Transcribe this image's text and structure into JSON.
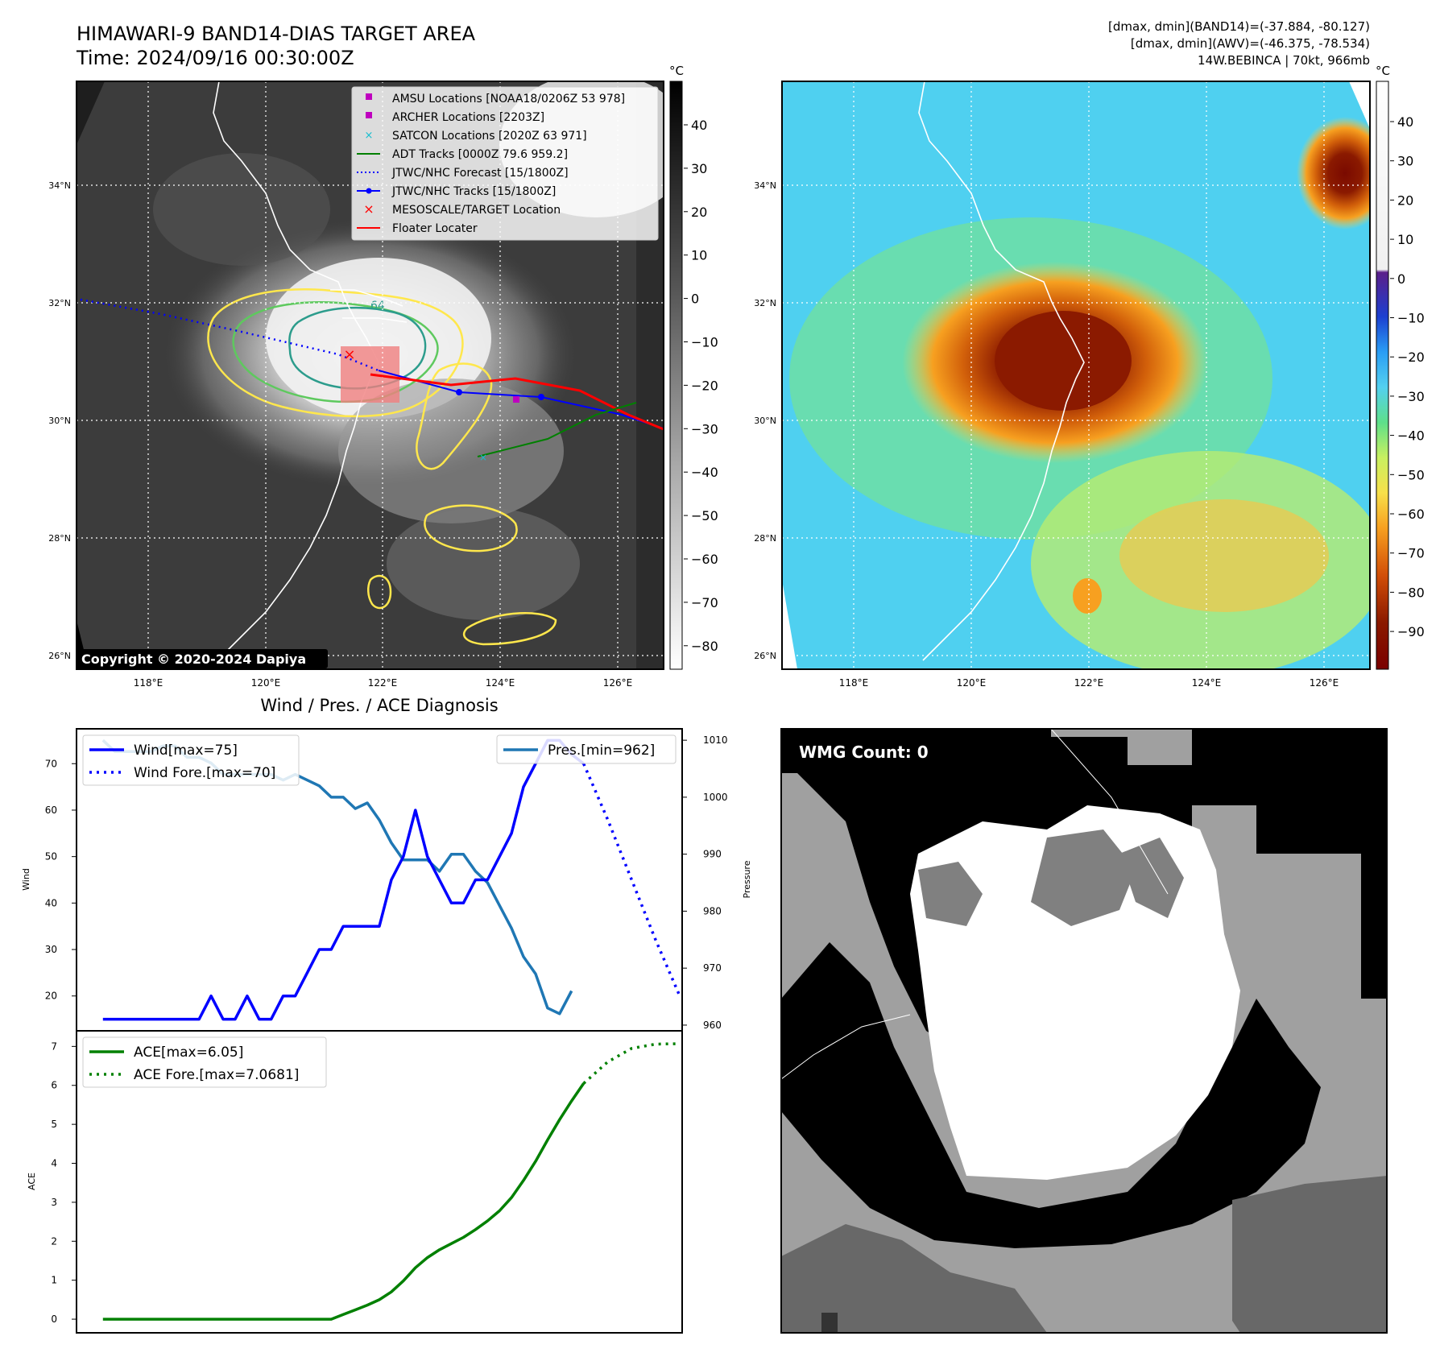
{
  "header": {
    "title": "HIMAWARI-9 BAND14-DIAS TARGET AREA",
    "time": "Time: 2024/09/16 00:30:00Z",
    "stats_band14": "[dmax, dmin](BAND14)=(-37.884, -80.127)",
    "stats_awv": "[dmax, dmin](AWV)=(-46.375, -78.534)",
    "storm": "14W.BEBINCA | 70kt, 966mb"
  },
  "map": {
    "lon_ticks": [
      "118°E",
      "120°E",
      "122°E",
      "124°E",
      "126°E"
    ],
    "lat_ticks": [
      "26°N",
      "28°N",
      "30°N",
      "32°N",
      "34°N"
    ],
    "copyright": "Copyright © 2020-2024 Dapiya",
    "contour_label": "64",
    "colorbar_unit": "°C",
    "gray_colorbar_ticks": [
      "40",
      "30",
      "20",
      "10",
      "0",
      "−10",
      "−20",
      "−30",
      "−40",
      "−50",
      "−60",
      "−70",
      "−80"
    ],
    "color_colorbar_ticks": [
      "40",
      "30",
      "20",
      "10",
      "0",
      "−10",
      "−20",
      "−30",
      "−40",
      "−50",
      "−60",
      "−70",
      "−80",
      "−90"
    ],
    "legend": [
      {
        "label": "AMSU Locations [NOAA18/0206Z 53 978]",
        "color": "#bf00bf"
      },
      {
        "label": "ARCHER Locations [2203Z]",
        "color": "#bf00bf"
      },
      {
        "label": "SATCON Locations [2020Z 63 971]",
        "color": "#17becf"
      },
      {
        "label": "ADT Tracks [0000Z 79.6 959.2]",
        "color": "#008000"
      },
      {
        "label": "JTWC/NHC Forecast [15/1800Z]",
        "color": "#0000ff"
      },
      {
        "label": "JTWC/NHC Tracks [15/1800Z]",
        "color": "#0000ff"
      },
      {
        "label": "MESOSCALE/TARGET Location",
        "color": "#ff0000"
      },
      {
        "label": "Floater Locater",
        "color": "#ff0000"
      }
    ]
  },
  "wmg": {
    "label": "WMG Count: 0"
  },
  "chart_data": [
    {
      "type": "line",
      "title": "Wind / Pres. / ACE Diagnosis",
      "ylabel": "Wind",
      "ylabel_right": "Pressure",
      "ylim": [
        12.5,
        77.5
      ],
      "ylim_right": [
        959,
        1012
      ],
      "xlim": [
        -1.1,
        24.1
      ],
      "wind_ticks": [
        "20",
        "30",
        "40",
        "50",
        "60",
        "70"
      ],
      "pres_ticks": [
        "960",
        "970",
        "980",
        "990",
        "1000",
        "1010"
      ],
      "legend_wind": "Wind[max=75]",
      "legend_wind_fore": "Wind Fore.[max=70]",
      "legend_pres": "Pres.[min=962]",
      "series": [
        {
          "name": "Wind[max=75]",
          "color": "#0000ff",
          "style": "solid",
          "x": [
            0,
            0.5,
            1,
            1.5,
            2,
            2.5,
            3,
            3.5,
            4,
            4.5,
            5,
            5.5,
            6,
            6.5,
            7,
            7.5,
            8,
            8.5,
            9,
            9.5,
            10,
            10.5,
            11,
            11.5,
            12,
            12.5,
            13,
            13.5,
            14,
            14.5,
            15,
            15.5,
            16,
            16.5,
            17,
            17.5,
            18,
            18.5,
            19,
            19.5,
            20
          ],
          "values": [
            15,
            15,
            15,
            15,
            15,
            15,
            15,
            15,
            15,
            20,
            15,
            15,
            20,
            15,
            15,
            20,
            20,
            25,
            30,
            30,
            35,
            35,
            35,
            35,
            45,
            50,
            60,
            50,
            45,
            40,
            40,
            45,
            45,
            50,
            55,
            65,
            70,
            75,
            75,
            72,
            70
          ]
        },
        {
          "name": "Wind Fore.[max=70]",
          "color": "#0000ff",
          "style": "dotted",
          "x": [
            20,
            21,
            22,
            23,
            24
          ],
          "values": [
            70,
            58,
            45,
            32,
            20
          ]
        },
        {
          "name": "Pres.[min=962]",
          "color": "#1f77b4",
          "style": "solid",
          "axis": "right",
          "x": [
            0,
            0.5,
            1,
            1.5,
            2,
            2.5,
            3,
            3.5,
            4,
            4.5,
            5,
            5.5,
            6,
            6.5,
            7,
            7.5,
            8,
            8.5,
            9,
            9.5,
            10,
            10.5,
            11,
            11.5,
            12,
            12.5,
            13,
            13.5,
            14,
            14.5,
            15,
            15.5,
            16,
            16.5,
            17,
            17.5,
            18,
            18.5,
            19,
            19.5
          ],
          "values": [
            1010,
            1008,
            1008,
            1008,
            1008,
            1009,
            1009,
            1007,
            1007,
            1006,
            1004,
            1004,
            1004,
            1004,
            1004,
            1003,
            1004,
            1003,
            1002,
            1000,
            1000,
            998,
            999,
            996,
            992,
            989,
            989,
            989,
            987,
            990,
            990,
            987,
            985,
            981,
            977,
            972,
            969,
            963,
            962,
            966
          ]
        }
      ]
    },
    {
      "type": "line",
      "ylabel": "ACE",
      "ylim": [
        -0.35,
        7.4
      ],
      "xlim": [
        -1.1,
        24.1
      ],
      "ace_ticks": [
        "0",
        "1",
        "2",
        "3",
        "4",
        "5",
        "6",
        "7"
      ],
      "legend_ace": "ACE[max=6.05]",
      "legend_ace_fore": "ACE Fore.[max=7.0681]",
      "series": [
        {
          "name": "ACE[max=6.05]",
          "color": "#008000",
          "style": "solid",
          "x": [
            0,
            9.5,
            10,
            10.5,
            11,
            11.5,
            12,
            12.5,
            13,
            13.5,
            14,
            14.5,
            15,
            15.5,
            16,
            16.5,
            17,
            17.5,
            18,
            18.5,
            19,
            19.5,
            20
          ],
          "values": [
            0,
            0,
            0.12,
            0.24,
            0.36,
            0.5,
            0.7,
            0.98,
            1.32,
            1.58,
            1.78,
            1.94,
            2.1,
            2.3,
            2.52,
            2.78,
            3.12,
            3.56,
            4.05,
            4.6,
            5.12,
            5.6,
            6.05
          ]
        },
        {
          "name": "ACE Fore.[max=7.0681]",
          "color": "#008000",
          "style": "dotted",
          "x": [
            20,
            21,
            22,
            23,
            24
          ],
          "values": [
            6.05,
            6.6,
            6.95,
            7.06,
            7.07
          ]
        }
      ]
    }
  ]
}
